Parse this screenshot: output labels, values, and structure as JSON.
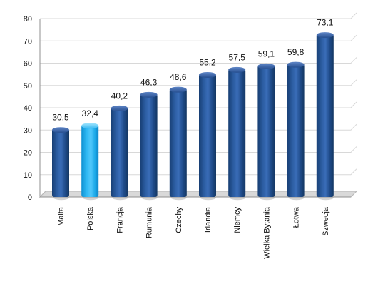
{
  "chart_data": {
    "type": "bar",
    "title": "",
    "xlabel": "",
    "ylabel": "",
    "ylim": [
      0,
      80
    ],
    "yticks": [
      0,
      10,
      20,
      30,
      40,
      50,
      60,
      70,
      80
    ],
    "grid": true,
    "categories": [
      "Malta",
      "Polska",
      "Francja",
      "Rumunia",
      "Czechy",
      "Irlandia",
      "Niemcy",
      "Wielka Bytania",
      "Łotwa",
      "Szwecja"
    ],
    "values": [
      30.5,
      32.4,
      40.2,
      46.3,
      48.6,
      55.2,
      57.5,
      59.1,
      59.8,
      73.1
    ],
    "value_labels": [
      "30,5",
      "32,4",
      "40,2",
      "46,3",
      "48,6",
      "55,2",
      "57,5",
      "59,1",
      "59,8",
      "73,1"
    ],
    "colors": {
      "default_bar": "#1f4e8c",
      "highlight_bar": "#16a9e7",
      "grid": "#d8d8d8",
      "floor": "#d9d9d9",
      "axis": "#8f8f8f",
      "text": "#111111"
    },
    "highlight_category": "Polska"
  }
}
